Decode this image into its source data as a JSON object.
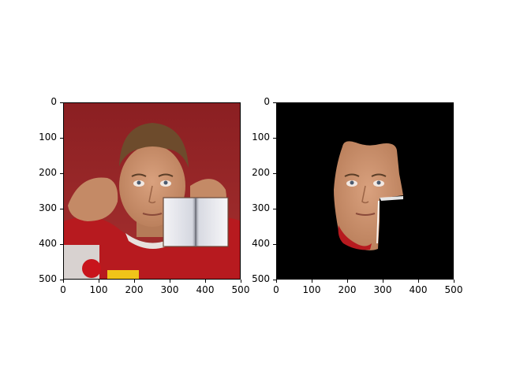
{
  "figure": {
    "panels": [
      {
        "name": "input-image",
        "description_visual": "photo-with-occluder",
        "x_ticks": [
          "0",
          "100",
          "200",
          "300",
          "400",
          "500"
        ],
        "y_ticks": [
          "0",
          "100",
          "200",
          "300",
          "400",
          "500"
        ]
      },
      {
        "name": "masked-face-output",
        "description_visual": "segmented-face-on-black",
        "x_ticks": [
          "0",
          "100",
          "200",
          "300",
          "400",
          "500"
        ],
        "y_ticks": [
          "0",
          "100",
          "200",
          "300",
          "400",
          "500"
        ]
      }
    ],
    "colors": {
      "background_wall": "#8f2426",
      "skin": "#c98f6d",
      "shirt_red": "#b71a1f",
      "hair": "#6d4b2c",
      "black": "#000000"
    }
  }
}
